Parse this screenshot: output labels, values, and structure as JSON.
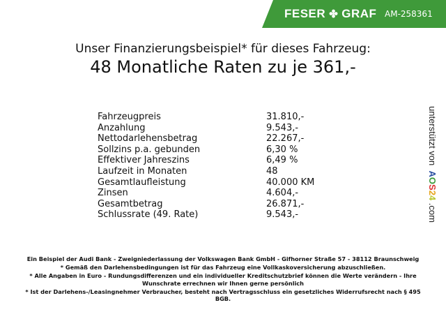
{
  "header": {
    "brand_left": "FESER",
    "brand_right": "GRAF",
    "brand_icon": "clover-icon",
    "code": "AM-258361",
    "brand_color": "#3f9a3a"
  },
  "title": {
    "line1": "Unser Finanzierungsbeispiel* für dieses Fahrzeug:",
    "line2": "48 Monatliche Raten zu je 361,-"
  },
  "rows": [
    {
      "label": "Fahrzeugpreis",
      "value": "31.810,-"
    },
    {
      "label": "Anzahlung",
      "value": "9.543,-"
    },
    {
      "label": "Nettodarlehensbetrag",
      "value": "22.267,-"
    },
    {
      "label": "Sollzins p.a. gebunden",
      "value": "6,30 %"
    },
    {
      "label": "Effektiver Jahreszins",
      "value": "6,49 %"
    },
    {
      "label": "Laufzeit in Monaten",
      "value": "48"
    },
    {
      "label": "Gesamtlaufleistung",
      "value": "40.000 KM"
    },
    {
      "label": "Zinsen",
      "value": "4.604,-"
    },
    {
      "label": "Gesamtbetrag",
      "value": "26.871,-"
    },
    {
      "label": "Schlussrate (49. Rate)",
      "value": "9.543,-"
    }
  ],
  "sponsor": {
    "text": "unterstützt von",
    "logo": "AOS24",
    "suffix": ".com"
  },
  "footer": [
    "Ein Beispiel der Audi Bank - Zweigniederlassung der Volkswagen Bank GmbH - Gifhorner Straße 57 - 38112 Braunschweig",
    "* Gemäß den Darlehensbedingungen ist für das Fahrzeug eine Vollkaskoversicherung abzuschließen.",
    "* Alle Angaben in Euro - Rundungsdifferenzen und ein individueller Kreditschutzbrief können die Werte verändern - Ihre Wunschrate errechnen wir Ihnen gerne persönlich",
    "* Ist der Darlehens-/Leasingnehmer Verbraucher, besteht nach Vertragsschluss ein gesetzliches Widerrufsrecht nach § 495 BGB."
  ]
}
